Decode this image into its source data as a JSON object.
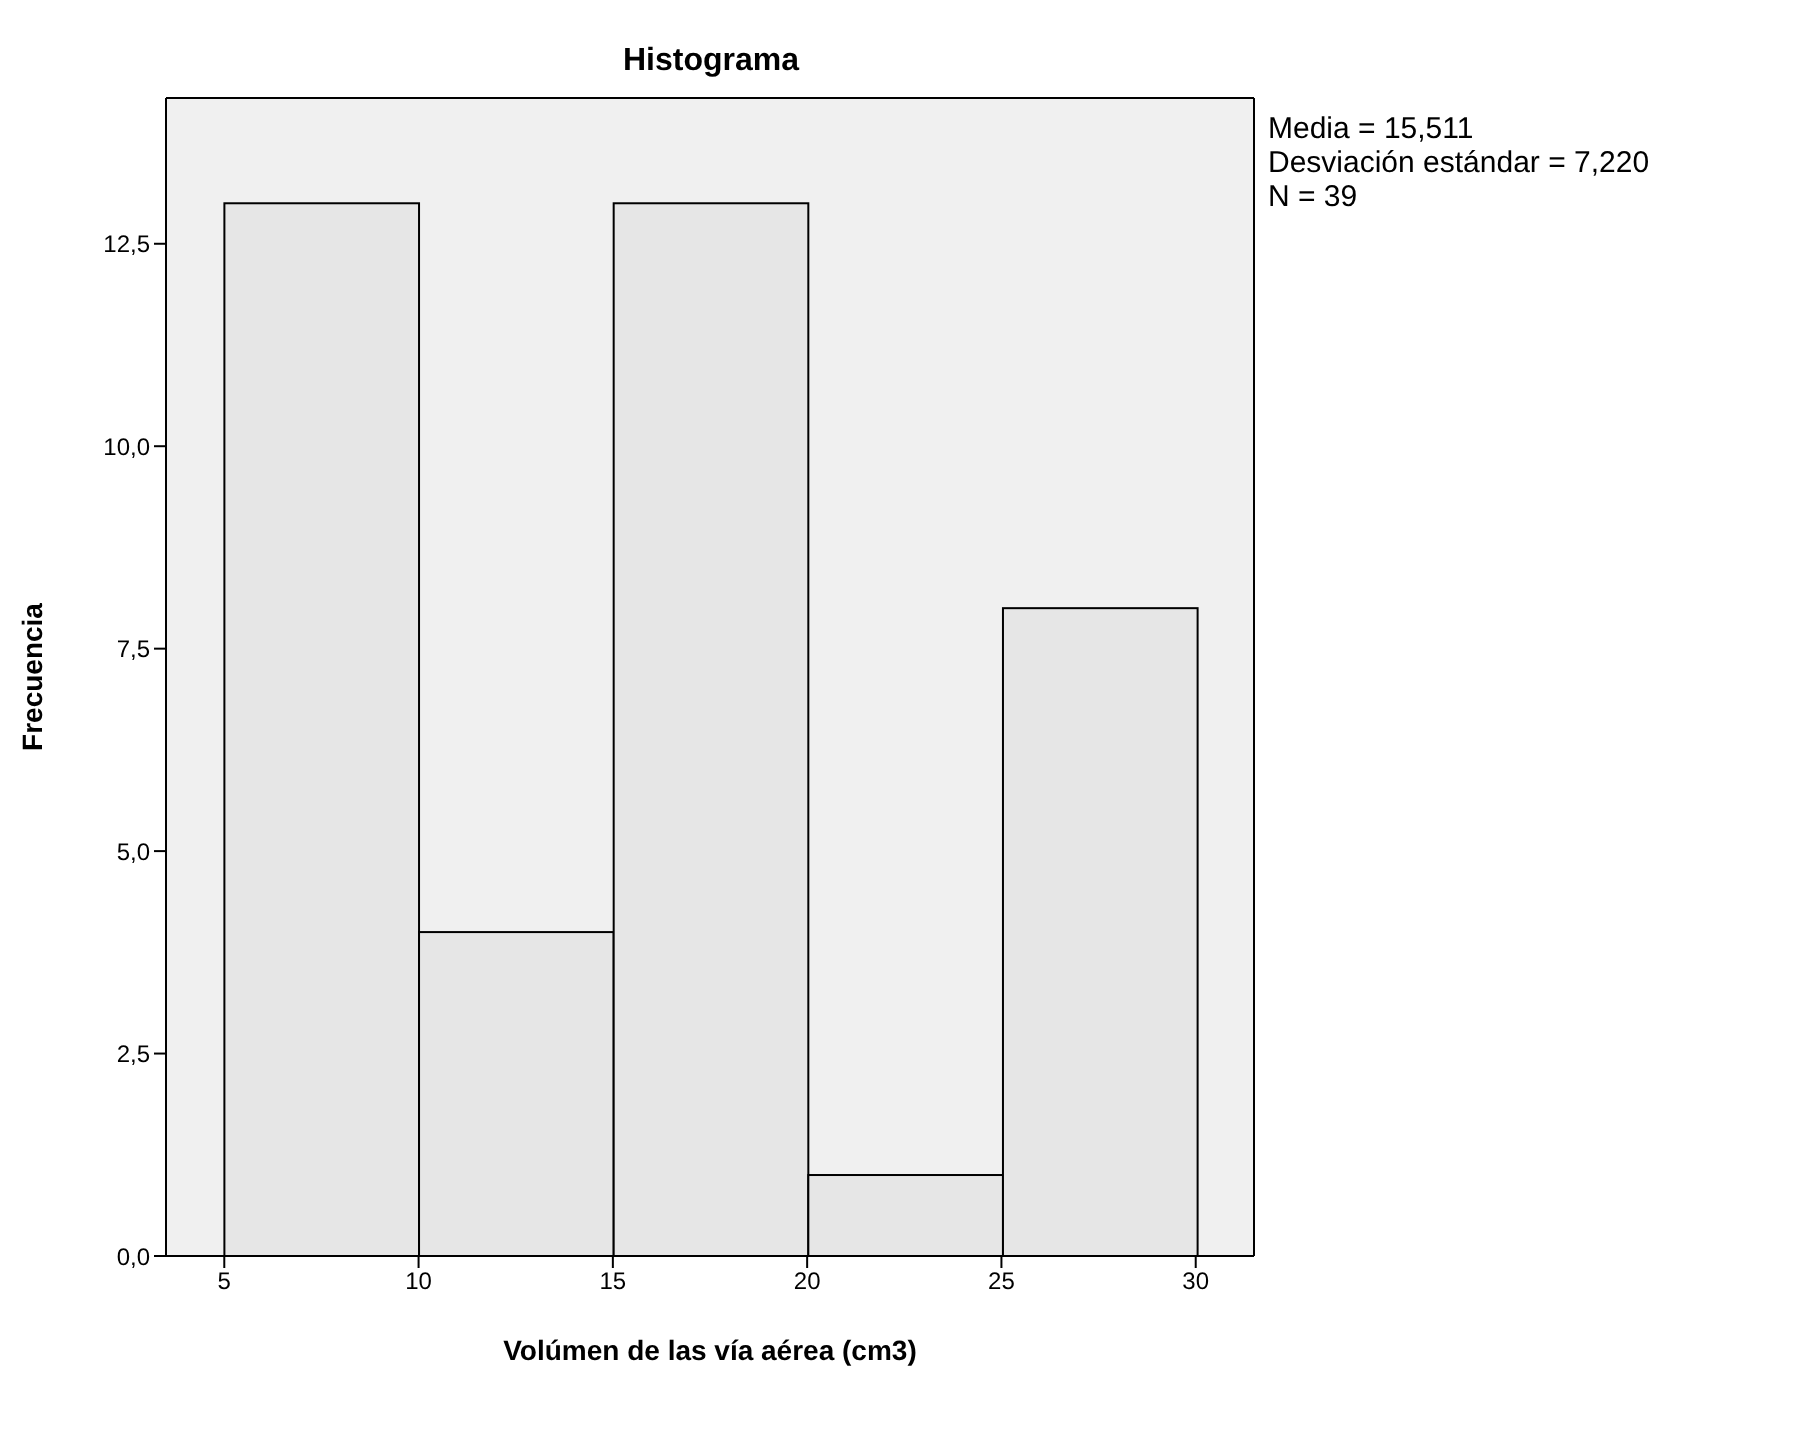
{
  "chart_data": {
    "type": "histogram",
    "title": "Histograma",
    "xlabel": "Volúmen de las vía aérea (cm3)",
    "ylabel": "Frecuencia",
    "bins": [
      5,
      10,
      15,
      20,
      25,
      30
    ],
    "values": [
      13,
      4,
      13,
      1,
      8
    ],
    "color": "#e6e6e6",
    "xlim": [
      3.5,
      31.5
    ],
    "xticks": [
      5,
      10,
      15,
      20,
      25,
      30
    ],
    "ylim": [
      0,
      14.3
    ],
    "yticks": [
      {
        "value": 0,
        "label": "0,0"
      },
      {
        "value": 2.5,
        "label": "2,5"
      },
      {
        "value": 5,
        "label": "5,0"
      },
      {
        "value": 7.5,
        "label": "7,5"
      },
      {
        "value": 10,
        "label": "10,0"
      },
      {
        "value": 12.5,
        "label": "12,5"
      }
    ],
    "annotations": [
      "Media = 15,511",
      "Desviación estándar = 7,220",
      "N = 39"
    ],
    "grid": false
  }
}
